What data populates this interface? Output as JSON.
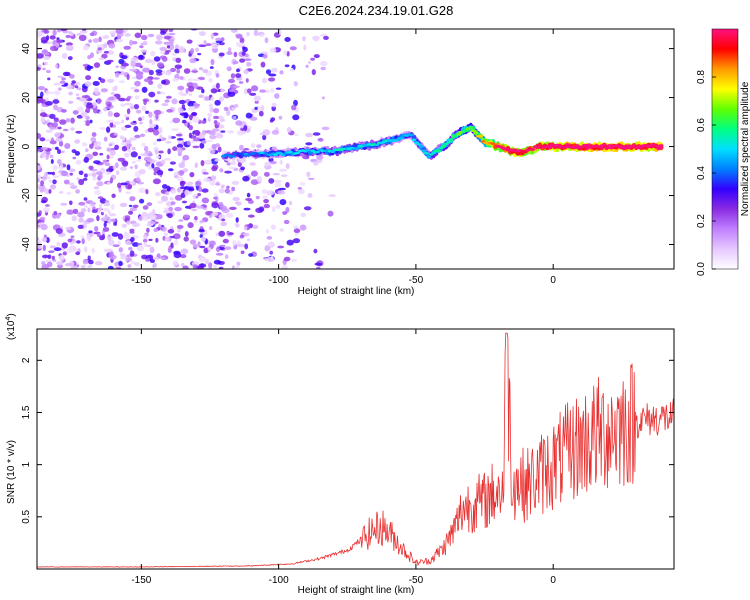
{
  "title": "C2E6.2024.234.19.01.G28",
  "chart_data": [
    {
      "type": "heatmap",
      "xlabel": "Height of straight line (km)",
      "ylabel": "Frequency (Hz)",
      "xlim": [
        -188,
        44
      ],
      "ylim": [
        -50,
        48
      ],
      "x_ticks": [
        -150,
        -100,
        -50,
        0
      ],
      "y_ticks": [
        -40,
        -20,
        0,
        20,
        40
      ],
      "grid": false,
      "colorbar": {
        "label": "Normalized spectral amplitude",
        "range": [
          0,
          1
        ],
        "ticks": [
          0.0,
          0.2,
          0.4,
          0.6,
          0.8
        ],
        "colors": [
          "#ffffff",
          "#e6c8ff",
          "#c080ff",
          "#8a2be2",
          "#3300ff",
          "#0080ff",
          "#00e0ff",
          "#00ff80",
          "#60ff00",
          "#ffff00",
          "#ff9900",
          "#ff0000",
          "#ff1080"
        ]
      },
      "ridge": {
        "x": [
          -120,
          -110,
          -100,
          -90,
          -80,
          -70,
          -60,
          -52,
          -45,
          -40,
          -35,
          -30,
          -25,
          -20,
          -15,
          -10,
          -5,
          0,
          10,
          20,
          30,
          40
        ],
        "freq": [
          -4,
          -3,
          -3,
          -2,
          -2,
          0,
          2,
          5,
          -4,
          0,
          5,
          8,
          2,
          0,
          -2,
          -2,
          0,
          0,
          0,
          0,
          0,
          0
        ],
        "amplitude": [
          0.25,
          0.3,
          0.35,
          0.35,
          0.4,
          0.4,
          0.4,
          0.35,
          0.4,
          0.45,
          0.5,
          0.55,
          0.7,
          0.85,
          0.95,
          0.85,
          0.9,
          0.95,
          0.95,
          0.95,
          0.95,
          0.95
        ]
      }
    },
    {
      "type": "line",
      "xlabel": "Height of straight line (km)",
      "ylabel": "SNR (10 * v/v)",
      "y_multiplier": "(x10",
      "y_multiplier_exp": "4",
      "xlim": [
        -188,
        44
      ],
      "ylim": [
        0.0,
        2.3
      ],
      "x_ticks": [
        -150,
        -100,
        -50,
        0
      ],
      "y_ticks": [
        0.5,
        1.0,
        1.5,
        2.0
      ],
      "grid": false,
      "color": "#e83030",
      "x": [
        -188,
        -150,
        -110,
        -95,
        -85,
        -75,
        -70,
        -65,
        -62,
        -58,
        -55,
        -50,
        -45,
        -40,
        -36,
        -33,
        -30,
        -25,
        -22,
        -18,
        -17,
        -15,
        -10,
        -5,
        0,
        10,
        20,
        30,
        44
      ],
      "y": [
        0.02,
        0.02,
        0.03,
        0.05,
        0.1,
        0.18,
        0.28,
        0.38,
        0.4,
        0.3,
        0.2,
        0.06,
        0.08,
        0.2,
        0.38,
        0.58,
        0.62,
        0.65,
        0.72,
        0.78,
        2.26,
        0.85,
        0.8,
        0.9,
        1.0,
        1.2,
        1.33,
        1.42,
        1.46
      ]
    }
  ]
}
